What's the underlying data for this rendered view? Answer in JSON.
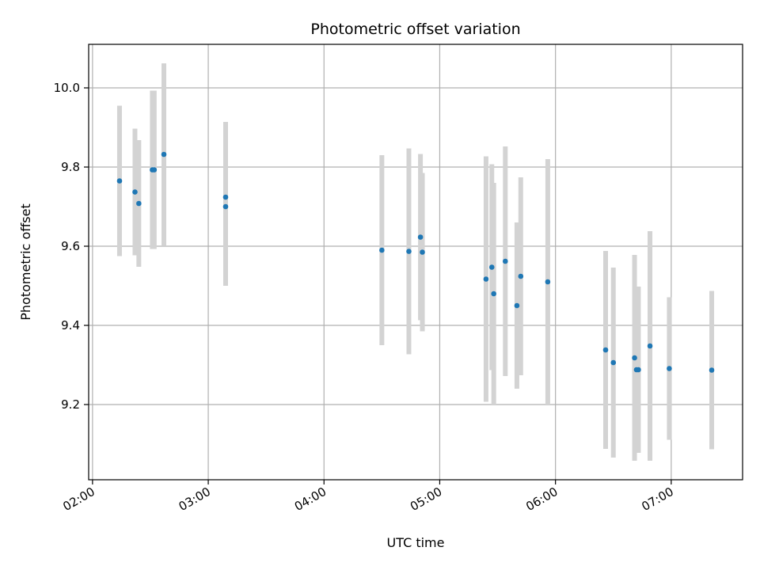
{
  "chart_data": {
    "type": "scatter",
    "title": "Photometric offset variation",
    "xlabel": "UTC time",
    "ylabel": "Photometric offset",
    "xlim": [
      "01:58",
      "07:37"
    ],
    "ylim": [
      9.01,
      10.11
    ],
    "x_ticks": [
      "02:00",
      "03:00",
      "04:00",
      "05:00",
      "06:00",
      "07:00"
    ],
    "y_ticks": [
      9.2,
      9.4,
      9.6,
      9.8,
      10.0
    ],
    "grid": true,
    "colors": {
      "marker": "#1f77b4",
      "errorbar": "#d3d3d3",
      "grid": "#b0b0b0"
    },
    "points": [
      {
        "x": "02:14",
        "y": 9.765,
        "err": 0.19
      },
      {
        "x": "02:22",
        "y": 9.737,
        "err": 0.16
      },
      {
        "x": "02:24",
        "y": 9.708,
        "err": 0.16
      },
      {
        "x": "02:31",
        "y": 9.793,
        "err": 0.2
      },
      {
        "x": "02:32",
        "y": 9.793,
        "err": 0.2
      },
      {
        "x": "02:37",
        "y": 9.832,
        "err": 0.23
      },
      {
        "x": "03:09",
        "y": 9.724,
        "err": 0.19
      },
      {
        "x": "03:09",
        "y": 9.7,
        "err": 0.2
      },
      {
        "x": "04:30",
        "y": 9.59,
        "err": 0.24
      },
      {
        "x": "04:44",
        "y": 9.587,
        "err": 0.26
      },
      {
        "x": "04:50",
        "y": 9.623,
        "err": 0.21
      },
      {
        "x": "04:51",
        "y": 9.585,
        "err": 0.2
      },
      {
        "x": "05:24",
        "y": 9.517,
        "err": 0.31
      },
      {
        "x": "05:27",
        "y": 9.547,
        "err": 0.26
      },
      {
        "x": "05:28",
        "y": 9.48,
        "err": 0.28
      },
      {
        "x": "05:34",
        "y": 9.562,
        "err": 0.29
      },
      {
        "x": "05:40",
        "y": 9.45,
        "err": 0.21
      },
      {
        "x": "05:42",
        "y": 9.524,
        "err": 0.25
      },
      {
        "x": "05:56",
        "y": 9.51,
        "err": 0.31
      },
      {
        "x": "06:26",
        "y": 9.338,
        "err": 0.25
      },
      {
        "x": "06:30",
        "y": 9.306,
        "err": 0.24
      },
      {
        "x": "06:41",
        "y": 9.318,
        "err": 0.26
      },
      {
        "x": "06:42",
        "y": 9.288,
        "err": 0.21
      },
      {
        "x": "06:43",
        "y": 9.288,
        "err": 0.21
      },
      {
        "x": "06:49",
        "y": 9.348,
        "err": 0.29
      },
      {
        "x": "06:59",
        "y": 9.291,
        "err": 0.18
      },
      {
        "x": "07:21",
        "y": 9.287,
        "err": 0.2
      }
    ]
  }
}
